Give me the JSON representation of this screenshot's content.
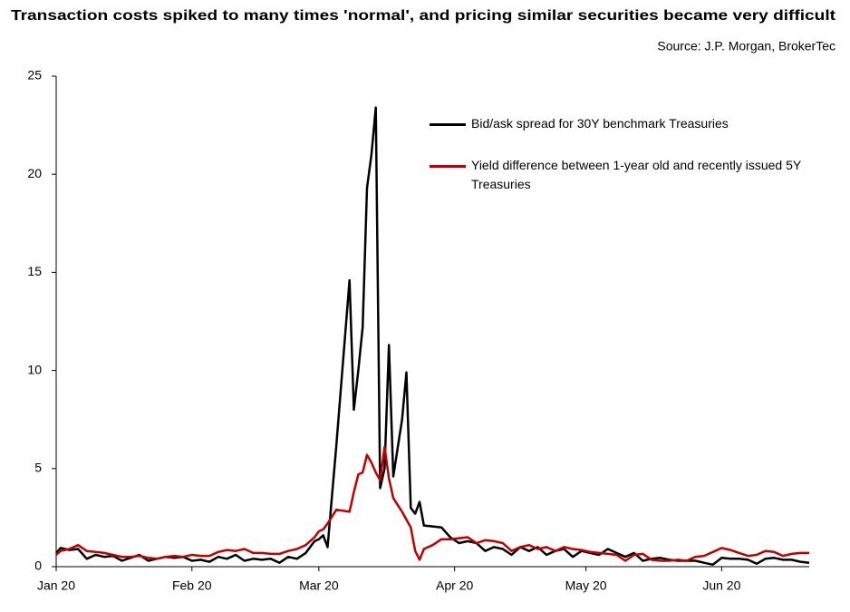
{
  "chart_data": {
    "type": "line",
    "title": "Transaction costs spiked to many times 'normal', and pricing similar securities became very difficult",
    "source": "Source: J.P. Morgan, BrokerTec",
    "x": [
      0,
      1,
      2,
      3,
      5,
      7,
      9,
      11,
      13,
      15,
      17,
      19,
      21,
      23,
      25,
      27,
      29,
      31,
      33,
      35,
      37,
      39,
      41,
      43,
      45,
      47,
      49,
      51,
      53,
      55,
      57,
      59,
      60,
      61,
      62,
      64,
      67,
      68,
      69,
      70,
      71,
      72,
      73,
      74,
      75,
      76,
      77,
      79,
      80,
      81,
      82,
      83,
      84,
      86,
      88,
      90,
      92,
      94,
      96,
      98,
      100,
      102,
      104,
      106,
      108,
      110,
      112,
      114,
      116,
      118,
      120,
      122,
      124,
      126,
      128,
      130,
      132,
      134,
      136,
      138,
      140,
      142,
      144,
      146,
      148,
      150,
      152,
      154,
      156,
      158,
      160,
      162,
      164,
      166,
      168,
      170,
      172
    ],
    "series": [
      {
        "name": "Bid/ask spread for 30Y benchmark Treasuries",
        "color": "#000000",
        "values": [
          0.7,
          0.95,
          0.9,
          0.85,
          0.9,
          0.4,
          0.6,
          0.5,
          0.55,
          0.3,
          0.45,
          0.6,
          0.3,
          0.4,
          0.5,
          0.45,
          0.5,
          0.3,
          0.35,
          0.25,
          0.5,
          0.4,
          0.6,
          0.3,
          0.4,
          0.35,
          0.4,
          0.2,
          0.5,
          0.4,
          0.7,
          1.3,
          1.4,
          1.6,
          1.0,
          6.2,
          14.6,
          8.0,
          10.0,
          12.2,
          19.3,
          21.0,
          23.4,
          4.0,
          5.0,
          11.3,
          4.6,
          7.5,
          9.9,
          3.0,
          2.7,
          3.3,
          2.1,
          2.05,
          2.0,
          1.5,
          1.2,
          1.3,
          1.2,
          0.8,
          1.0,
          0.9,
          0.6,
          1.0,
          0.8,
          1.0,
          0.6,
          0.8,
          0.9,
          0.5,
          0.8,
          0.7,
          0.6,
          0.9,
          0.7,
          0.5,
          0.7,
          0.3,
          0.4,
          0.45,
          0.35,
          0.3,
          0.3,
          0.3,
          0.2,
          0.1,
          0.45,
          0.4,
          0.4,
          0.35,
          0.15,
          0.4,
          0.45,
          0.35,
          0.35,
          0.25,
          0.2
        ]
      },
      {
        "name": "Yield difference between 1-year old and recently issued 5Y Treasuries",
        "color": "#c00000",
        "values": [
          0.6,
          0.8,
          0.85,
          0.9,
          1.1,
          0.8,
          0.75,
          0.7,
          0.6,
          0.5,
          0.5,
          0.55,
          0.45,
          0.4,
          0.5,
          0.55,
          0.5,
          0.6,
          0.55,
          0.55,
          0.75,
          0.85,
          0.8,
          0.9,
          0.7,
          0.7,
          0.65,
          0.65,
          0.8,
          0.9,
          1.1,
          1.5,
          1.8,
          1.9,
          2.2,
          2.9,
          2.8,
          3.8,
          4.7,
          4.8,
          5.7,
          5.3,
          4.8,
          4.4,
          6.1,
          4.5,
          3.5,
          2.8,
          2.4,
          2.0,
          0.8,
          0.35,
          0.9,
          1.1,
          1.4,
          1.4,
          1.45,
          1.5,
          1.2,
          1.35,
          1.3,
          1.2,
          0.8,
          1.0,
          1.1,
          0.9,
          1.0,
          0.8,
          1.0,
          0.9,
          0.85,
          0.75,
          0.7,
          0.65,
          0.6,
          0.3,
          0.6,
          0.65,
          0.35,
          0.3,
          0.3,
          0.35,
          0.3,
          0.5,
          0.55,
          0.75,
          0.95,
          0.85,
          0.7,
          0.55,
          0.6,
          0.8,
          0.75,
          0.55,
          0.65,
          0.7,
          0.7
        ]
      }
    ],
    "xlim": [
      0,
      172
    ],
    "xticks": [
      {
        "value": 0,
        "label": "Jan 20"
      },
      {
        "value": 31,
        "label": "Feb 20"
      },
      {
        "value": 60,
        "label": "Mar 20"
      },
      {
        "value": 91,
        "label": "Apr 20"
      },
      {
        "value": 121,
        "label": "May 20"
      },
      {
        "value": 152,
        "label": "Jun 20"
      }
    ],
    "ylim": [
      0,
      25
    ],
    "yticks": [
      0,
      5,
      10,
      15,
      20,
      25
    ],
    "legend": "upper right"
  }
}
